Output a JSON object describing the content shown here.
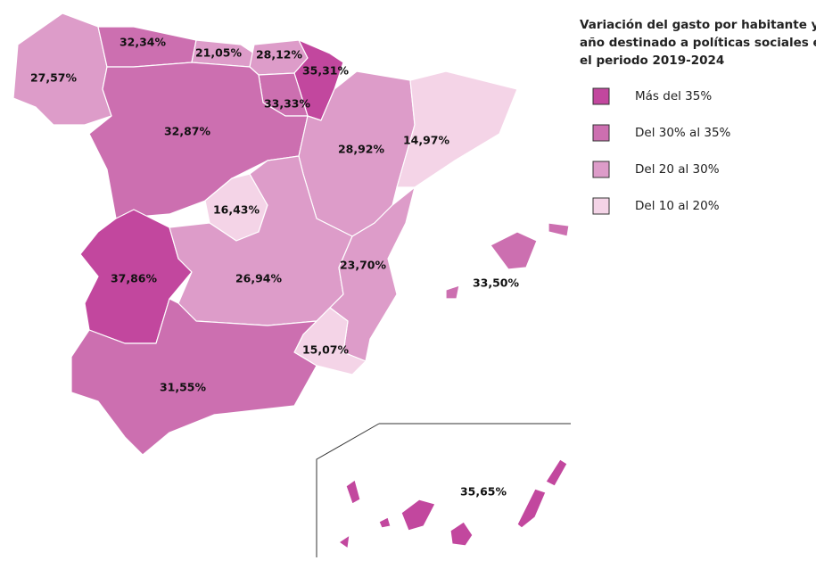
{
  "title": {
    "lines": [
      "Variación del gasto por habitante y",
      "año destinado a políticas sociales en",
      "el periodo"
    ],
    "period": "2019-2024"
  },
  "legend": [
    {
      "label": "Más del 35%",
      "color": "#c2479e"
    },
    {
      "label": "Del 30% al 35%",
      "color": "#cc6fb0"
    },
    {
      "label": "Del 20 al 30%",
      "color": "#dd9cc9"
    },
    {
      "label": "Del 10 al 20%",
      "color": "#f4d4e7"
    }
  ],
  "regions": [
    {
      "value": 27.57,
      "value_label": "27,57%",
      "color": "#dd9cc9"
    },
    {
      "value": 32.34,
      "value_label": "32,34%",
      "color": "#cc6fb0"
    },
    {
      "value": 21.05,
      "value_label": "21,05%",
      "color": "#dd9cc9"
    },
    {
      "value": 28.12,
      "value_label": "28,12%",
      "color": "#dd9cc9"
    },
    {
      "value": 35.31,
      "value_label": "35,31%",
      "color": "#c2479e"
    },
    {
      "value": 33.33,
      "value_label": "33,33%",
      "color": "#cc6fb0"
    },
    {
      "value": 32.87,
      "value_label": "32,87%",
      "color": "#cc6fb0"
    },
    {
      "value": 28.92,
      "value_label": "28,92%",
      "color": "#dd9cc9"
    },
    {
      "value": 14.97,
      "value_label": "14,97%",
      "color": "#f4d4e7"
    },
    {
      "value": 16.43,
      "value_label": "16,43%",
      "color": "#f4d4e7"
    },
    {
      "value": 37.86,
      "value_label": "37,86%",
      "color": "#c2479e"
    },
    {
      "value": 26.94,
      "value_label": "26,94%",
      "color": "#dd9cc9"
    },
    {
      "value": 23.7,
      "value_label": "23,70%",
      "color": "#dd9cc9"
    },
    {
      "value": 15.07,
      "value_label": "15,07%",
      "color": "#f4d4e7"
    },
    {
      "value": 31.55,
      "value_label": "31,55%",
      "color": "#cc6fb0"
    },
    {
      "value": 33.5,
      "value_label": "33,50%",
      "color": "#cc6fb0"
    },
    {
      "value": 35.65,
      "value_label": "35,65%",
      "color": "#c2479e"
    }
  ]
}
